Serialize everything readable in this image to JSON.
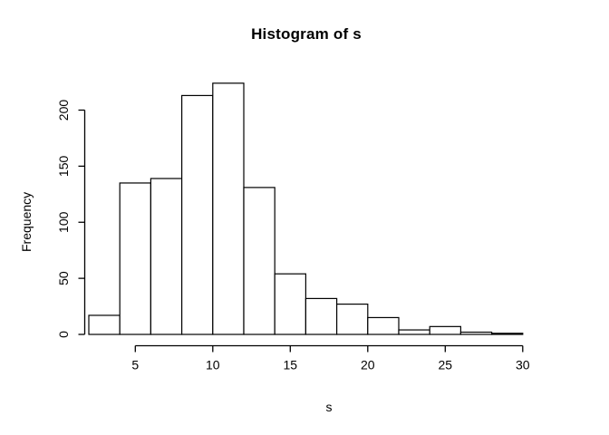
{
  "chart_data": {
    "type": "bar",
    "chart_kind": "histogram",
    "title": "Histogram of s",
    "xlabel": "s",
    "ylabel": "Frequency",
    "bin_edges": [
      2,
      4,
      6,
      8,
      10,
      12,
      14,
      16,
      18,
      20,
      22,
      24,
      26,
      28,
      30
    ],
    "values": [
      17,
      135,
      139,
      213,
      224,
      131,
      54,
      32,
      27,
      15,
      4,
      7,
      2,
      1
    ],
    "x_ticks": [
      5,
      10,
      15,
      20,
      25,
      30
    ],
    "y_ticks": [
      0,
      50,
      100,
      150,
      200
    ],
    "xlim": [
      2,
      30
    ],
    "ylim": [
      0,
      224
    ],
    "grid": false,
    "legend_position": "none",
    "bar_fill": "#ffffff",
    "bar_stroke": "#000000",
    "axis_color": "#000000",
    "background": "#ffffff"
  }
}
